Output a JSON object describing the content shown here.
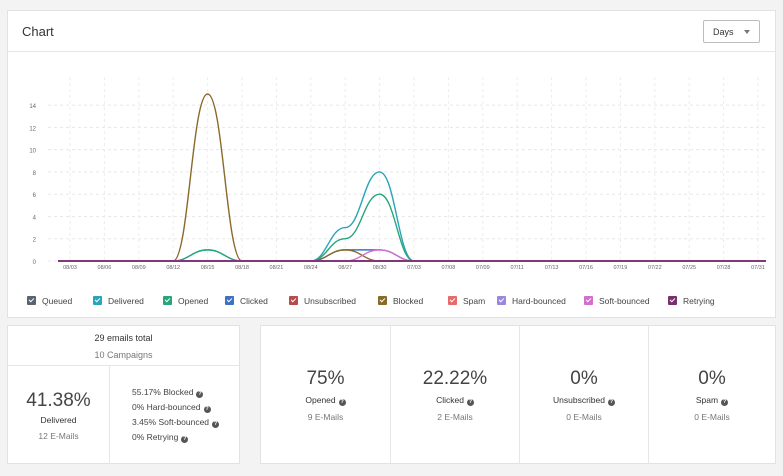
{
  "chart_panel": {
    "title": "Chart",
    "range_select": {
      "value": "Days"
    }
  },
  "chart_data": {
    "type": "line",
    "x_ticks": [
      "08/03",
      "08/06",
      "08/09",
      "08/12",
      "08/15",
      "08/18",
      "08/21",
      "08/24",
      "08/27",
      "08/30",
      "07/03",
      "07/08",
      "07/09",
      "07/11",
      "07/13",
      "07/16",
      "07/19",
      "07/22",
      "07/25",
      "07/28",
      "07/31"
    ],
    "y_ticks": [
      0,
      2,
      4,
      6,
      8,
      10,
      12,
      14
    ],
    "ylim": [
      0,
      15
    ],
    "grid": true,
    "legend_position": "bottom",
    "series": [
      {
        "name": "Queued",
        "color": "#5a6470",
        "values": [
          0,
          0,
          0,
          0,
          0,
          0,
          0,
          0,
          0,
          0,
          0,
          0,
          0,
          0,
          0,
          0,
          0,
          0,
          0,
          0,
          0
        ]
      },
      {
        "name": "Delivered",
        "color": "#2aa4b8",
        "values": [
          0,
          0,
          0,
          0,
          1,
          0,
          0,
          0,
          3,
          8,
          0,
          0,
          0,
          0,
          0,
          0,
          0,
          0,
          0,
          0,
          0
        ]
      },
      {
        "name": "Opened",
        "color": "#29a57a",
        "values": [
          0,
          0,
          0,
          0,
          1,
          0,
          0,
          0,
          2,
          6,
          0,
          0,
          0,
          0,
          0,
          0,
          0,
          0,
          0,
          0,
          0
        ]
      },
      {
        "name": "Clicked",
        "color": "#3b72c4",
        "values": [
          0,
          0,
          0,
          0,
          0,
          0,
          0,
          0,
          1,
          1,
          0,
          0,
          0,
          0,
          0,
          0,
          0,
          0,
          0,
          0,
          0
        ]
      },
      {
        "name": "Unsubscribed",
        "color": "#b54b4b",
        "values": [
          0,
          0,
          0,
          0,
          0,
          0,
          0,
          0,
          0,
          0,
          0,
          0,
          0,
          0,
          0,
          0,
          0,
          0,
          0,
          0,
          0
        ]
      },
      {
        "name": "Blocked",
        "color": "#8a6a2a",
        "values": [
          0,
          0,
          0,
          0,
          15,
          0,
          0,
          0,
          1,
          0,
          0,
          0,
          0,
          0,
          0,
          0,
          0,
          0,
          0,
          0,
          0
        ]
      },
      {
        "name": "Spam",
        "color": "#e86a6a",
        "values": [
          0,
          0,
          0,
          0,
          0,
          0,
          0,
          0,
          0,
          0,
          0,
          0,
          0,
          0,
          0,
          0,
          0,
          0,
          0,
          0,
          0
        ]
      },
      {
        "name": "Hard-bounced",
        "color": "#9b87e0",
        "values": [
          0,
          0,
          0,
          0,
          0,
          0,
          0,
          0,
          0,
          0,
          0,
          0,
          0,
          0,
          0,
          0,
          0,
          0,
          0,
          0,
          0
        ]
      },
      {
        "name": "Soft-bounced",
        "color": "#d36ed0",
        "values": [
          0,
          0,
          0,
          0,
          0,
          0,
          0,
          0,
          0,
          1,
          0,
          0,
          0,
          0,
          0,
          0,
          0,
          0,
          0,
          0,
          0
        ]
      },
      {
        "name": "Retrying",
        "color": "#7a2f6e",
        "values": [
          0,
          0,
          0,
          0,
          0,
          0,
          0,
          0,
          0,
          0,
          0,
          0,
          0,
          0,
          0,
          0,
          0,
          0,
          0,
          0,
          0
        ]
      }
    ]
  },
  "totals": {
    "emails_total": "29 emails total",
    "campaigns": "10 Campaigns",
    "delivered_pct": "41.38%",
    "delivered_label": "Delivered",
    "delivered_count": "12 E-Mails",
    "breakdown": [
      "55.17% Blocked",
      "0% Hard-bounced",
      "3.45% Soft-bounced",
      "0% Retrying"
    ]
  },
  "stats": [
    {
      "pct": "75%",
      "label": "Opened",
      "count": "9 E-Mails"
    },
    {
      "pct": "22.22%",
      "label": "Clicked",
      "count": "2 E-Mails"
    },
    {
      "pct": "0%",
      "label": "Unsubscribed",
      "count": "0 E-Mails"
    },
    {
      "pct": "0%",
      "label": "Spam",
      "count": "0 E-Mails"
    }
  ],
  "icons": {
    "help": "question-circle-icon",
    "dropdown": "caret-down-icon",
    "legend_check": "checkbox-checked-icon"
  }
}
